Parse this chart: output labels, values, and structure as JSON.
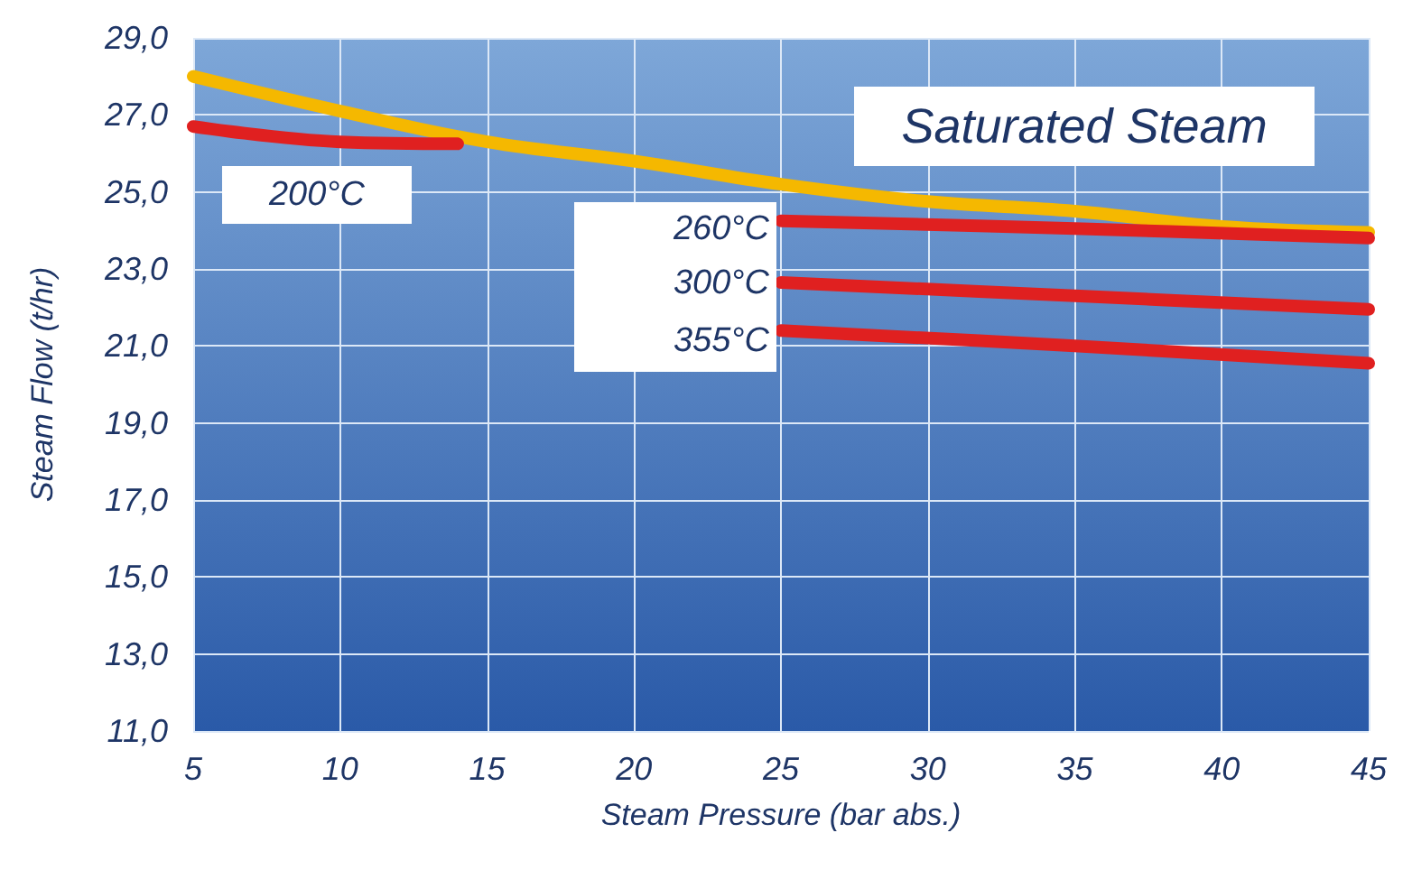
{
  "chart_data": {
    "type": "line",
    "xlabel": "Steam Pressure (bar abs.)",
    "ylabel": "Steam Flow (t/hr)",
    "xlim": [
      5,
      45
    ],
    "xticks": [
      5,
      10,
      15,
      20,
      25,
      30,
      35,
      40,
      45
    ],
    "ylim": [
      11,
      29
    ],
    "yticks": [
      {
        "value": 11,
        "label": "11,0"
      },
      {
        "value": 13,
        "label": "13,0"
      },
      {
        "value": 15,
        "label": "15,0"
      },
      {
        "value": 17,
        "label": "17,0"
      },
      {
        "value": 19,
        "label": "19,0"
      },
      {
        "value": 21,
        "label": "21,0"
      },
      {
        "value": 23,
        "label": "23,0"
      },
      {
        "value": 25,
        "label": "25,0"
      },
      {
        "value": 27,
        "label": "27,0"
      },
      {
        "value": 29,
        "label": "29,0"
      }
    ],
    "grid": true,
    "marker": "none",
    "line_style": "solid",
    "series": [
      {
        "name": "Saturated Steam",
        "color": "#f5b800",
        "x": [
          5,
          10,
          15,
          20,
          25,
          30,
          35,
          40,
          45
        ],
        "values": [
          28.0,
          27.1,
          26.3,
          25.8,
          25.2,
          24.75,
          24.5,
          24.1,
          23.95
        ]
      },
      {
        "name": "200°C",
        "color": "#e02020",
        "x": [
          5,
          10,
          14
        ],
        "values": [
          26.7,
          26.3,
          26.25
        ]
      },
      {
        "name": "260°C",
        "color": "#e02020",
        "x": [
          25,
          35,
          45
        ],
        "values": [
          24.25,
          24.05,
          23.8
        ]
      },
      {
        "name": "300°C",
        "color": "#e02020",
        "x": [
          25,
          35,
          45
        ],
        "values": [
          22.65,
          22.3,
          21.95
        ]
      },
      {
        "name": "355°C",
        "color": "#e02020",
        "x": [
          25,
          35,
          45
        ],
        "values": [
          21.4,
          21.0,
          20.55
        ]
      }
    ]
  }
}
